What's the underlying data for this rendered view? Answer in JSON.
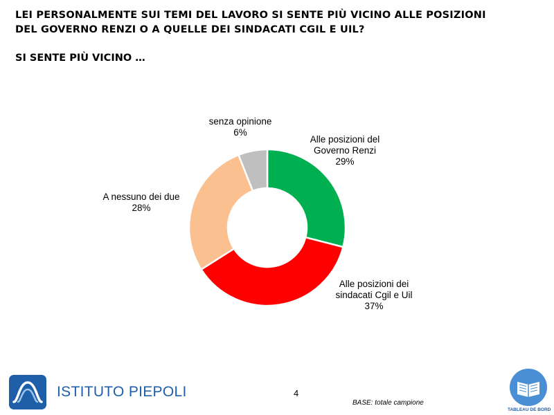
{
  "header": {
    "title_line1": "LEI PERSONALMENTE SUI TEMI DEL LAVORO SI SENTE PIÙ VICINO ALLE POSIZIONI",
    "title_line2": "DEL GOVERNO RENZI O A QUELLE DEI SINDACATI CGIL E UIL?",
    "subtitle": "SI SENTE PIÙ VICINO …"
  },
  "chart_data": {
    "type": "pie",
    "variant": "donut",
    "slices": [
      {
        "label_lines": [
          "Alle posizioni del",
          "Governo Renzi"
        ],
        "value": 29,
        "value_label": "29%",
        "color": "#00b050"
      },
      {
        "label_lines": [
          "Alle posizioni dei",
          "sindacati Cgil e Uil"
        ],
        "value": 37,
        "value_label": "37%",
        "color": "#ff0000"
      },
      {
        "label_lines": [
          "A nessuno dei due"
        ],
        "value": 28,
        "value_label": "28%",
        "color": "#fac090"
      },
      {
        "label_lines": [
          "senza opinione"
        ],
        "value": 6,
        "value_label": "6%",
        "color": "#bfbfbf"
      }
    ],
    "legend": "none"
  },
  "footer": {
    "logo_text": "ISTITUTO PIEPOLI",
    "page_number": "4",
    "base_note": "BASE: totale campione",
    "badge_text": "TABLEAU DE BORD",
    "brand_color": "#1f5ea8"
  }
}
